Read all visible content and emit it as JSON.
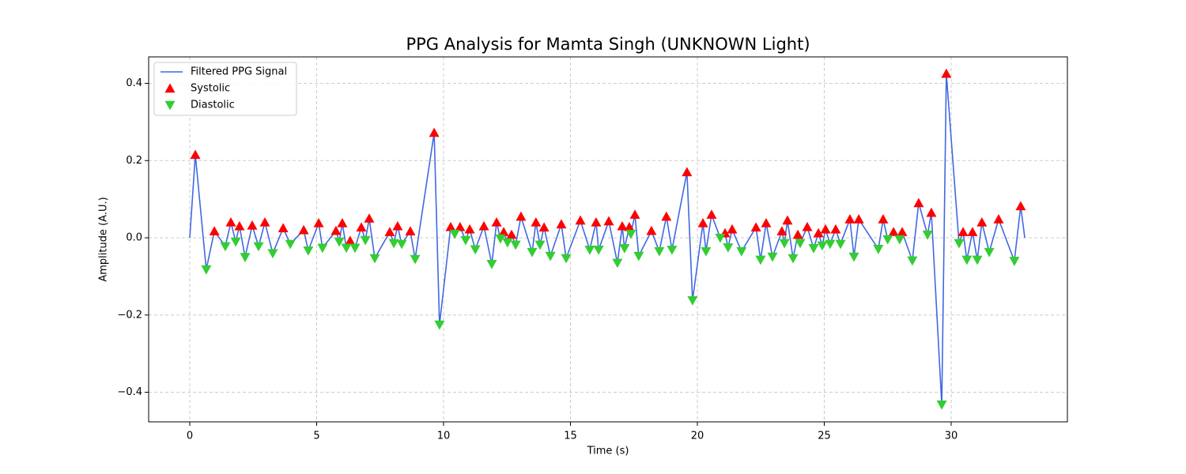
{
  "chart_data": {
    "type": "line",
    "title": "PPG Analysis for Mamta Singh (UNKNOWN Light)",
    "x_label": "Time (s)",
    "y_label": "Amplitude (A.U.)",
    "xlim": [
      -1.62,
      34.58
    ],
    "ylim": [
      -0.4767,
      0.4686
    ],
    "xticks": [
      0,
      5,
      10,
      15,
      20,
      25,
      30
    ],
    "yticks": [
      {
        "value": -0.4,
        "label": "−0.4"
      },
      {
        "value": -0.2,
        "label": "−0.2"
      },
      {
        "value": 0,
        "label": "0.0"
      },
      0.2,
      0.4
    ],
    "grid": true,
    "legend": "upper left",
    "series": [
      {
        "name": "Filtered PPG Signal",
        "kind": "line",
        "color": "#4169e1",
        "x": [
          0,
          0.22,
          0.65,
          0.97,
          1.4,
          1.62,
          1.81,
          1.96,
          2.18,
          2.46,
          2.71,
          2.96,
          3.27,
          3.68,
          3.96,
          4.49,
          4.67,
          5.08,
          5.23,
          5.76,
          5.89,
          6.01,
          6.17,
          6.32,
          6.51,
          6.76,
          6.92,
          7.07,
          7.29,
          7.88,
          8.04,
          8.19,
          8.35,
          8.69,
          8.88,
          9.63,
          9.84,
          10.28,
          10.44,
          10.65,
          10.87,
          11.03,
          11.25,
          11.59,
          11.9,
          12.09,
          12.24,
          12.37,
          12.52,
          12.68,
          12.84,
          13.05,
          13.49,
          13.64,
          13.8,
          13.96,
          14.21,
          14.64,
          14.83,
          15.39,
          15.76,
          16.01,
          16.11,
          16.51,
          16.85,
          17.04,
          17.13,
          17.32,
          17.38,
          17.54,
          17.69,
          18.19,
          18.5,
          18.78,
          19.0,
          19.59,
          19.81,
          20.22,
          20.34,
          20.56,
          20.9,
          21.09,
          21.21,
          21.37,
          21.74,
          22.31,
          22.49,
          22.71,
          22.96,
          23.33,
          23.43,
          23.55,
          23.77,
          23.96,
          24.05,
          24.33,
          24.58,
          24.77,
          24.92,
          25.05,
          25.23,
          25.45,
          25.64,
          26.01,
          26.17,
          26.36,
          27.13,
          27.32,
          27.5,
          27.73,
          27.97,
          28.07,
          28.47,
          28.72,
          29.07,
          29.22,
          29.63,
          29.81,
          30.31,
          30.47,
          30.62,
          30.84,
          31.03,
          31.21,
          31.5,
          31.87,
          32.49,
          32.74,
          32.9
        ],
        "values": [
          0,
          0.215,
          -0.082,
          0.017,
          -0.022,
          0.04,
          -0.01,
          0.03,
          -0.05,
          0.032,
          -0.022,
          0.04,
          -0.04,
          0.025,
          -0.016,
          0.02,
          -0.033,
          0.038,
          -0.026,
          0.018,
          -0.01,
          0.038,
          -0.026,
          -0.008,
          -0.026,
          0.027,
          -0.006,
          0.05,
          -0.053,
          0.015,
          -0.014,
          0.03,
          -0.016,
          0.017,
          -0.055,
          0.272,
          -0.225,
          0.028,
          0.01,
          0.028,
          -0.006,
          0.022,
          -0.03,
          0.03,
          -0.068,
          0.04,
          -0.002,
          0.015,
          -0.012,
          0.008,
          -0.018,
          0.055,
          -0.037,
          0.04,
          -0.018,
          0.027,
          -0.047,
          0.035,
          -0.053,
          0.045,
          -0.031,
          0.04,
          -0.031,
          0.043,
          -0.065,
          0.03,
          -0.027,
          0.028,
          0.01,
          0.06,
          -0.047,
          0.018,
          -0.035,
          0.055,
          -0.031,
          0.17,
          -0.162,
          0.038,
          -0.035,
          0.06,
          0,
          0.012,
          -0.025,
          0.022,
          -0.035,
          0.027,
          -0.057,
          0.038,
          -0.049,
          0.017,
          -0.014,
          0.045,
          -0.053,
          0.008,
          -0.014,
          0.028,
          -0.027,
          0.012,
          -0.02,
          0.022,
          -0.016,
          0.022,
          -0.016,
          0.048,
          -0.049,
          0.048,
          -0.029,
          0.048,
          -0.004,
          0.015,
          -0.004,
          0.015,
          -0.059,
          0.09,
          0.008,
          0.065,
          -0.432,
          0.425,
          -0.014,
          0.015,
          -0.057,
          0.015,
          -0.057,
          0.04,
          -0.037,
          0.048,
          -0.06,
          0.082,
          0
        ]
      },
      {
        "name": "Systolic",
        "kind": "scatter",
        "marker": "triangle-up",
        "color": "#ff0000",
        "x": [
          0.22,
          0.97,
          1.62,
          1.96,
          2.46,
          2.96,
          3.68,
          4.49,
          5.08,
          5.76,
          6.01,
          6.32,
          6.76,
          7.07,
          7.88,
          8.19,
          8.69,
          9.63,
          10.28,
          10.65,
          11.03,
          11.59,
          12.09,
          12.37,
          12.68,
          13.05,
          13.64,
          13.96,
          14.64,
          15.39,
          16.01,
          16.51,
          17.04,
          17.32,
          17.54,
          18.19,
          18.78,
          19.59,
          20.22,
          20.56,
          21.09,
          21.37,
          22.31,
          22.71,
          23.33,
          23.55,
          23.96,
          24.33,
          24.77,
          25.05,
          25.45,
          26.01,
          26.36,
          27.32,
          27.73,
          28.07,
          28.72,
          29.22,
          29.81,
          30.47,
          30.84,
          31.21,
          31.87,
          32.74
        ],
        "values": [
          0.215,
          0.017,
          0.04,
          0.03,
          0.032,
          0.04,
          0.025,
          0.02,
          0.038,
          0.018,
          0.038,
          -0.008,
          0.027,
          0.05,
          0.015,
          0.03,
          0.017,
          0.272,
          0.028,
          0.028,
          0.022,
          0.03,
          0.04,
          0.015,
          0.008,
          0.055,
          0.04,
          0.027,
          0.035,
          0.045,
          0.04,
          0.043,
          0.03,
          0.028,
          0.06,
          0.018,
          0.055,
          0.17,
          0.038,
          0.06,
          0.012,
          0.022,
          0.027,
          0.038,
          0.017,
          0.045,
          0.008,
          0.028,
          0.012,
          0.022,
          0.022,
          0.048,
          0.048,
          0.048,
          0.015,
          0.015,
          0.09,
          0.065,
          0.425,
          0.015,
          0.015,
          0.04,
          0.048,
          0.082
        ]
      },
      {
        "name": "Diastolic",
        "kind": "scatter",
        "marker": "triangle-down",
        "color": "#32cd32",
        "x": [
          0.65,
          1.4,
          1.81,
          2.18,
          2.71,
          3.27,
          3.96,
          4.67,
          5.23,
          5.89,
          6.17,
          6.51,
          6.92,
          7.29,
          8.04,
          8.35,
          8.88,
          9.84,
          10.44,
          10.87,
          11.25,
          11.9,
          12.24,
          12.52,
          12.84,
          13.49,
          13.8,
          14.21,
          14.83,
          15.76,
          16.11,
          16.85,
          17.13,
          17.38,
          17.69,
          18.5,
          19.0,
          19.81,
          20.34,
          20.9,
          21.21,
          21.74,
          22.49,
          22.96,
          23.43,
          23.77,
          24.05,
          24.58,
          24.92,
          25.23,
          25.64,
          26.17,
          27.13,
          27.5,
          27.97,
          28.47,
          29.07,
          29.63,
          30.31,
          30.62,
          31.03,
          31.5,
          32.49
        ],
        "values": [
          -0.082,
          -0.022,
          -0.01,
          -0.05,
          -0.022,
          -0.04,
          -0.016,
          -0.033,
          -0.026,
          -0.01,
          -0.026,
          -0.026,
          -0.006,
          -0.053,
          -0.014,
          -0.016,
          -0.055,
          -0.225,
          0.01,
          -0.006,
          -0.03,
          -0.068,
          -0.002,
          -0.012,
          -0.018,
          -0.037,
          -0.018,
          -0.047,
          -0.053,
          -0.031,
          -0.031,
          -0.065,
          -0.027,
          0.01,
          -0.047,
          -0.035,
          -0.031,
          -0.162,
          -0.035,
          0,
          -0.025,
          -0.035,
          -0.057,
          -0.049,
          -0.014,
          -0.053,
          -0.014,
          -0.027,
          -0.02,
          -0.016,
          -0.016,
          -0.049,
          -0.029,
          -0.004,
          -0.004,
          -0.059,
          0.008,
          -0.432,
          -0.014,
          -0.057,
          -0.057,
          -0.037,
          -0.06
        ]
      }
    ]
  }
}
